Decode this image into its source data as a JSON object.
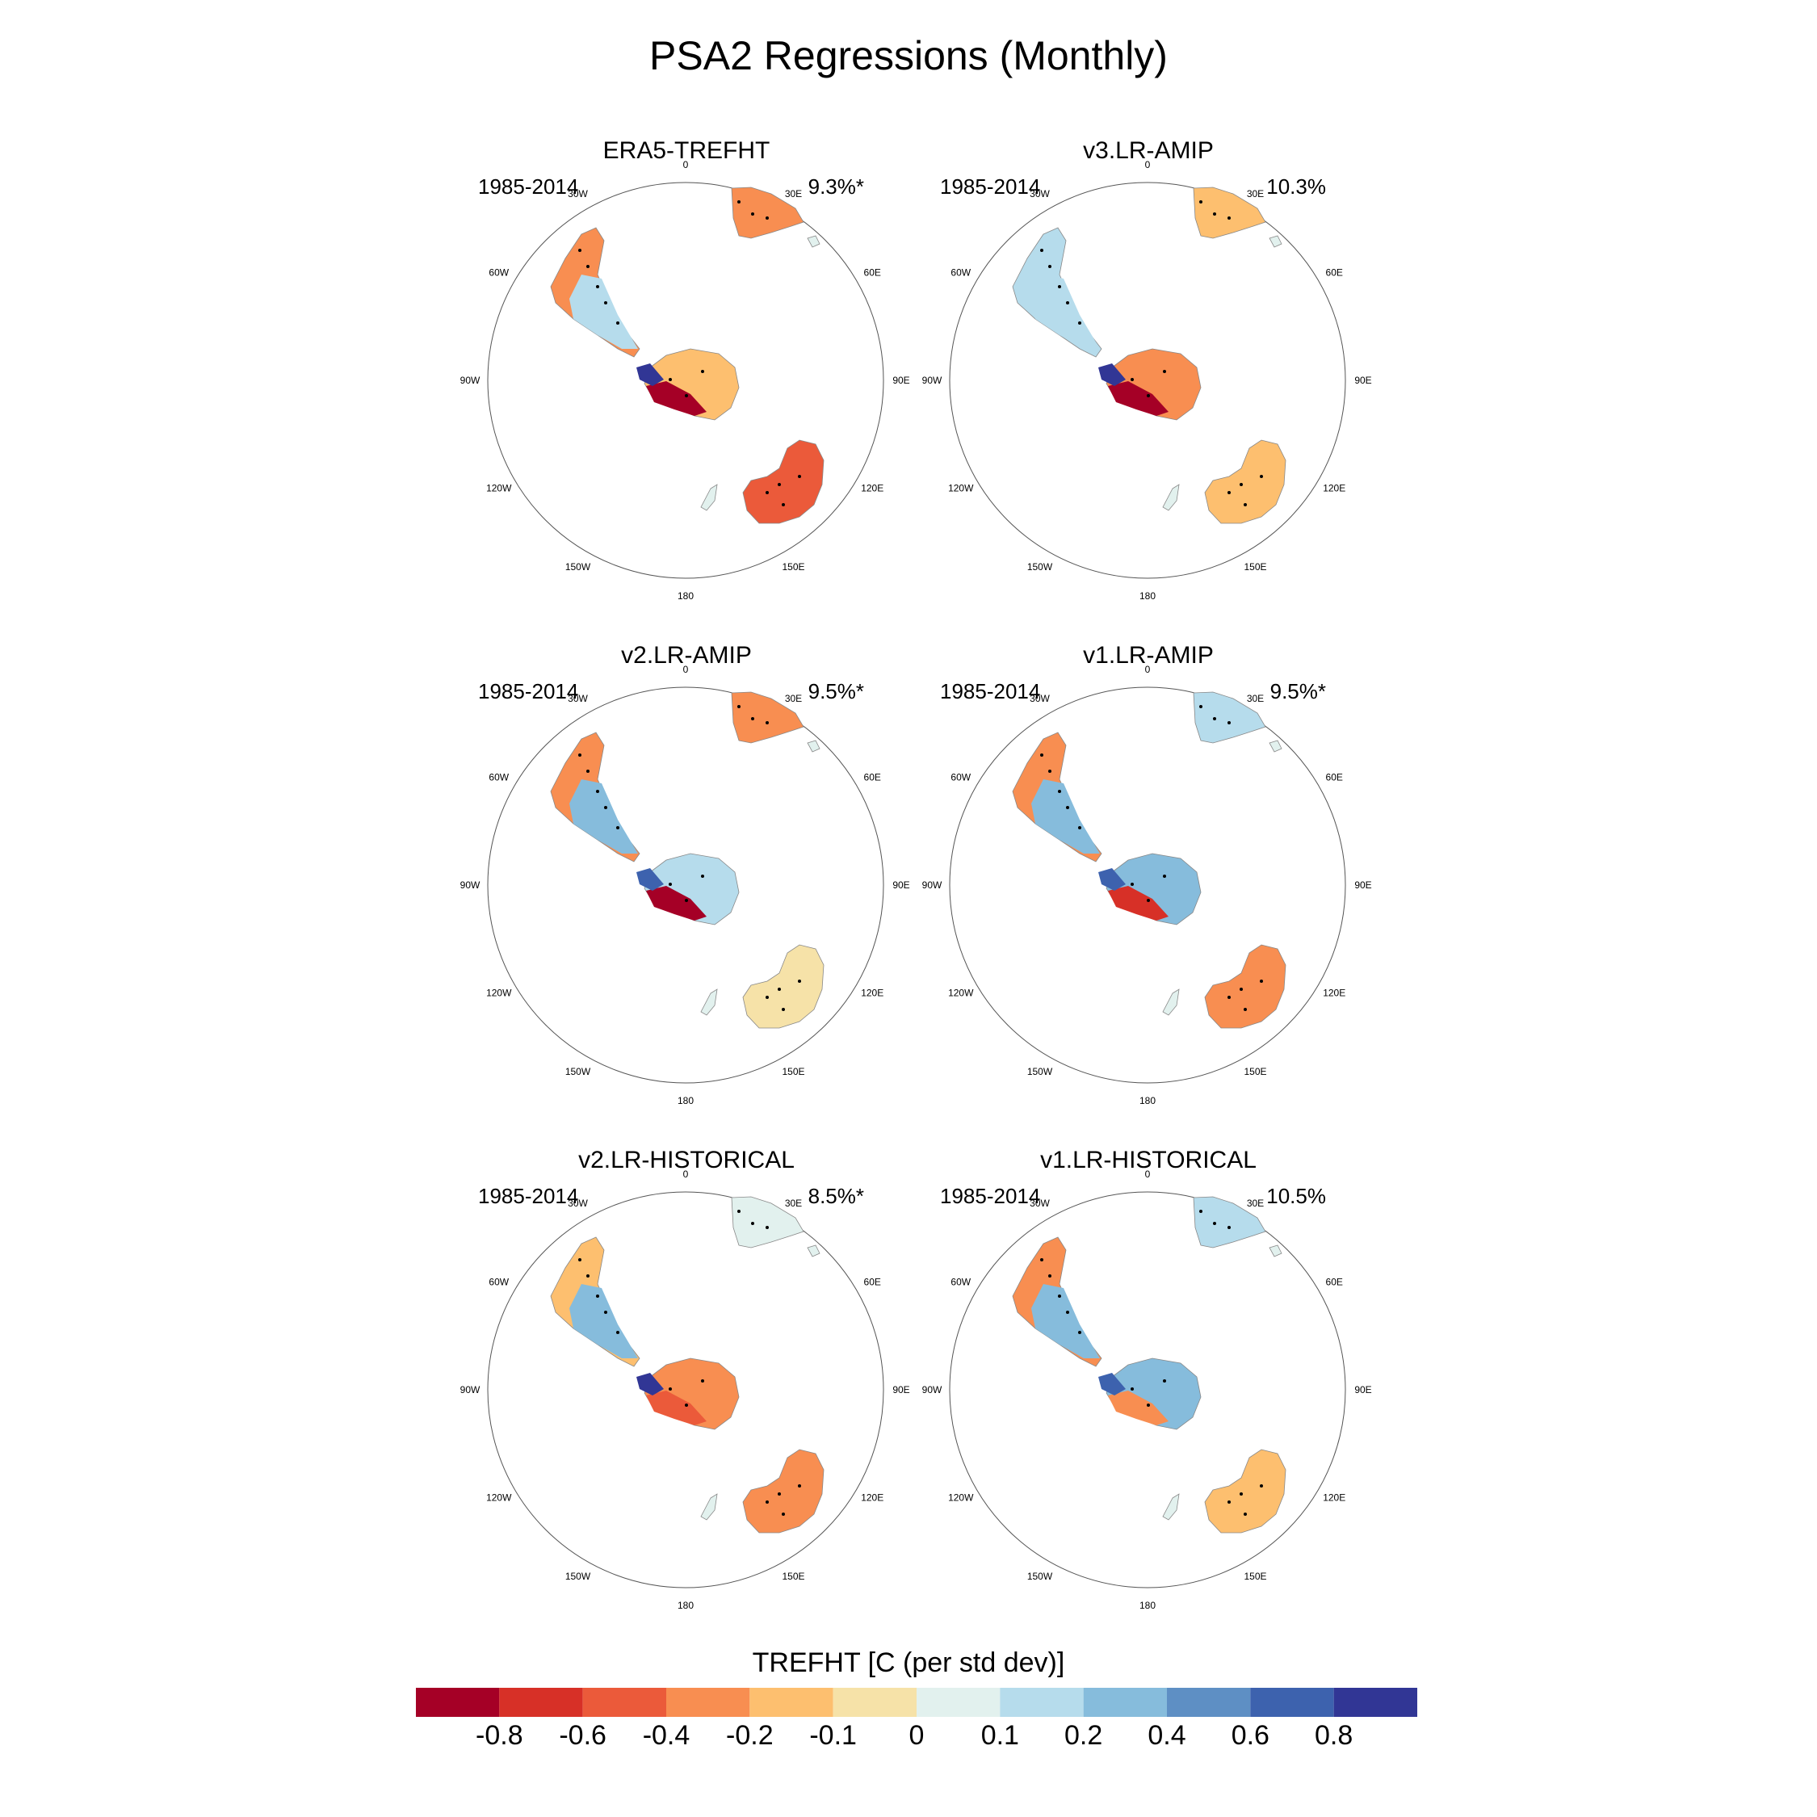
{
  "title": "PSA2 Regressions (Monthly)",
  "longitude_labels": [
    "0",
    "30E",
    "60E",
    "90E",
    "120E",
    "150E",
    "180",
    "150W",
    "120W",
    "90W",
    "60W",
    "30W"
  ],
  "panels": [
    {
      "title": "ERA5-TREFHT",
      "years": "1985-2014",
      "percent": "9.3%*"
    },
    {
      "title": "v3.LR-AMIP",
      "years": "1985-2014",
      "percent": "10.3%"
    },
    {
      "title": "v2.LR-AMIP",
      "years": "1985-2014",
      "percent": "9.5%*"
    },
    {
      "title": "v1.LR-AMIP",
      "years": "1985-2014",
      "percent": "9.5%*"
    },
    {
      "title": "v2.LR-HISTORICAL",
      "years": "1985-2014",
      "percent": "8.5%*"
    },
    {
      "title": "v1.LR-HISTORICAL",
      "years": "1985-2014",
      "percent": "10.5%"
    }
  ],
  "colorbar": {
    "title": "TREFHT [C (per std dev)]",
    "tick_labels": [
      "-0.8",
      "-0.6",
      "-0.4",
      "-0.2",
      "-0.1",
      "0",
      "0.1",
      "0.2",
      "0.4",
      "0.6",
      "0.8"
    ],
    "colors": [
      "#a50026",
      "#d73027",
      "#eb5a3a",
      "#f88e51",
      "#fdbf6f",
      "#f6e2a8",
      "#e2f1ee",
      "#b6dcec",
      "#86bcdc",
      "#5e8fc4",
      "#3d62ae",
      "#313695"
    ]
  }
}
